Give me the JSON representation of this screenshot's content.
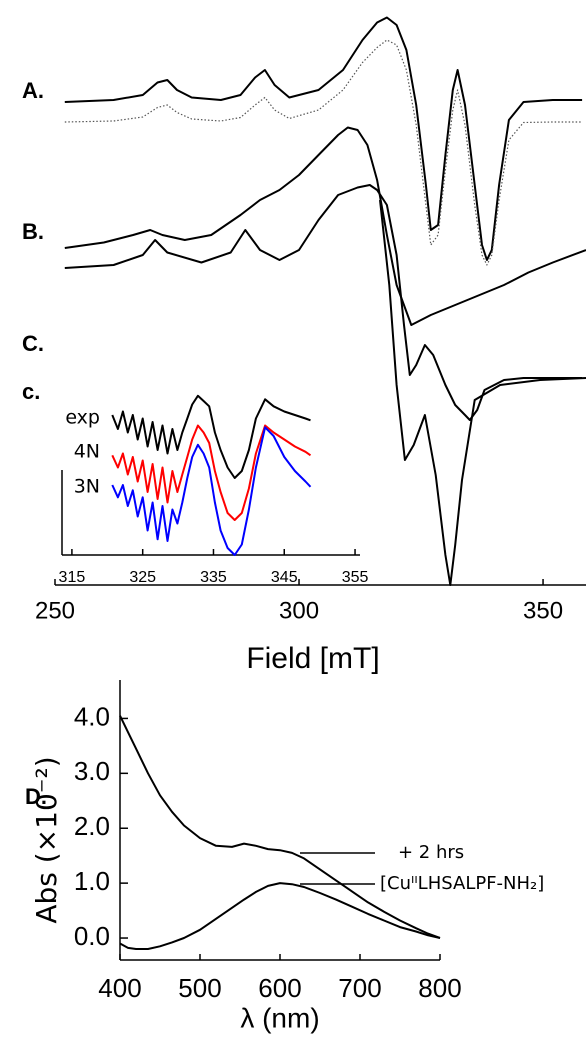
{
  "chart_data": [
    {
      "type": "line",
      "xlabel": "Field [mT]",
      "annotations": [
        "A.",
        "B.",
        "C."
      ],
      "xlim": [
        250,
        358.8
      ],
      "xticks": [
        250,
        300,
        350
      ],
      "ylim": [
        0,
        115
      ],
      "series": [
        {
          "color": "#000000",
          "line_style": "solid",
          "x": [
            252,
            262,
            268,
            271,
            273,
            275,
            278,
            284,
            288,
            291,
            293,
            295,
            298,
            304,
            309,
            313,
            316,
            318,
            320,
            322,
            324,
            326,
            327,
            328.5,
            330,
            331.5,
            332.5,
            334,
            336,
            337.5,
            338.5,
            339.5,
            341,
            343,
            346,
            352,
            358
          ],
          "values": [
            96.6,
            97,
            98,
            100.5,
            101,
            99,
            97.5,
            97,
            98,
            101.5,
            103,
            100,
            97.5,
            99,
            103,
            109,
            112.5,
            113.5,
            112,
            107,
            96,
            80,
            71,
            72,
            86,
            99,
            103,
            96,
            80,
            68,
            65,
            67,
            80,
            93,
            96.6,
            97,
            97
          ]
        },
        {
          "color": "#555555",
          "line_style": "dotted",
          "x": [
            252,
            262,
            268,
            271,
            273,
            275,
            278,
            284,
            288,
            291,
            293,
            295,
            298,
            304,
            309,
            313,
            316,
            318,
            320,
            322,
            324,
            326,
            327,
            328.5,
            330,
            331.5,
            332.5,
            334,
            336,
            337.5,
            338.5,
            339.5,
            341,
            343,
            346,
            352,
            358
          ],
          "values": [
            92.6,
            92.8,
            93.6,
            95.5,
            96,
            94.5,
            93.2,
            92.8,
            93.5,
            96,
            97.5,
            95,
            93.3,
            95,
            99,
            104.5,
            107.5,
            109,
            108,
            103,
            92,
            76,
            68,
            70,
            83,
            95,
            99,
            92,
            76,
            66,
            64,
            66,
            77,
            89,
            92.5,
            92.6,
            92.6
          ]
        },
        {
          "color": "#000000",
          "line_style": "solid",
          "x": [
            252,
            260,
            266,
            269.5,
            272,
            276.6,
            282,
            288,
            292,
            296,
            300,
            304,
            308,
            310,
            312,
            314,
            316,
            318,
            320,
            323,
            327,
            332,
            337,
            342,
            347,
            352,
            358.8
          ],
          "values": [
            67.4,
            68.5,
            70,
            71,
            70,
            69,
            70,
            74,
            77,
            79,
            82,
            86,
            90,
            91.5,
            91,
            88,
            81,
            70,
            60,
            52,
            54,
            56,
            58,
            60,
            62.5,
            64.5,
            67
          ]
        },
        {
          "color": "#000000",
          "line_style": "solid",
          "x": [
            252,
            262,
            268,
            270.5,
            273,
            280,
            286,
            289,
            292,
            296,
            300,
            304,
            308,
            312,
            314.5,
            316,
            318,
            320,
            321.5,
            322.7,
            324,
            325.8,
            327.5,
            330,
            332,
            334,
            335,
            336.5,
            338,
            342,
            346,
            352,
            358
          ],
          "values": [
            63.4,
            64,
            66,
            69,
            66.5,
            64.5,
            66.5,
            71,
            67,
            65,
            67,
            73,
            78,
            79.5,
            80,
            79,
            76,
            66,
            52,
            42,
            44,
            48,
            46,
            40,
            36,
            34,
            33,
            35,
            39,
            41,
            41.4,
            41.4,
            41.4
          ]
        },
        {
          "color": "#000000",
          "line_style": "solid",
          "x": [
            316.6,
            318.5,
            320,
            321.7,
            323.5,
            325.8,
            328,
            330,
            331,
            332,
            333.4,
            336,
            341.2,
            349.4,
            358.8
          ],
          "values": [
            77,
            60,
            40,
            25,
            28,
            34,
            22,
            6,
            0,
            8,
            21,
            37,
            40,
            41,
            41.4
          ]
        }
      ]
    },
    {
      "type": "line",
      "annotations": [
        "c."
      ],
      "xlim": [
        313.6,
        355.7
      ],
      "xticks": [
        315,
        325,
        335,
        345,
        355
      ],
      "ylim": [
        0,
        100
      ],
      "series": [
        {
          "name": "exp",
          "color": "#000000",
          "x": [
            320.7,
            321.5,
            322.2,
            322.9,
            323.6,
            324.3,
            325,
            325.7,
            326.4,
            327.1,
            327.8,
            328.5,
            329.2,
            329.9,
            330.6,
            331.3,
            332,
            332.8,
            333.6,
            334.4,
            335.2,
            336,
            337,
            338,
            339,
            340,
            341,
            342.3,
            343.5,
            345,
            346.5,
            348,
            348.7
          ],
          "values": [
            80,
            72,
            82,
            70,
            80,
            66,
            78,
            62,
            76,
            60,
            74,
            58,
            72,
            60,
            70,
            78,
            86,
            91,
            88,
            85,
            70,
            60,
            50,
            44,
            48,
            60,
            78,
            89,
            85,
            82,
            80,
            78,
            77
          ]
        },
        {
          "name": "4N",
          "color": "#ff0000",
          "x": [
            320.7,
            321.5,
            322.2,
            322.9,
            323.6,
            324.3,
            325,
            325.7,
            326.4,
            327.1,
            327.8,
            328.5,
            329.2,
            329.9,
            330.6,
            331.3,
            332,
            332.8,
            333.6,
            334.4,
            335.2,
            336,
            337,
            338,
            339,
            340,
            341,
            342.3,
            343.5,
            345,
            346.5,
            348,
            348.7
          ],
          "values": [
            57,
            50,
            58,
            46,
            56,
            42,
            54,
            36,
            52,
            32,
            50,
            30,
            48,
            36,
            46,
            56,
            66,
            74,
            70,
            64,
            48,
            36,
            24,
            20,
            24,
            38,
            58,
            74,
            70,
            66,
            62,
            59,
            57
          ]
        },
        {
          "name": "3N",
          "color": "#0000ff",
          "x": [
            320.7,
            321.5,
            322.2,
            322.9,
            323.6,
            324.3,
            325,
            325.7,
            326.4,
            327.1,
            327.8,
            328.5,
            329.2,
            329.9,
            330.6,
            331.3,
            332,
            332.8,
            333.6,
            334.4,
            335.2,
            336,
            337,
            338,
            339,
            340,
            341,
            342.3,
            343.5,
            345,
            346.5,
            348,
            348.7
          ],
          "values": [
            40,
            33,
            40,
            28,
            37,
            22,
            33,
            14,
            30,
            9,
            28,
            8,
            26,
            18,
            30,
            44,
            56,
            63,
            58,
            50,
            30,
            14,
            4,
            0,
            6,
            26,
            50,
            73,
            68,
            56,
            48,
            42,
            39
          ]
        }
      ]
    },
    {
      "type": "line",
      "annotations": [
        "D."
      ],
      "xlabel": "λ (nm)",
      "ylabel": "Abs (×10⁻²)",
      "xlim": [
        400,
        800
      ],
      "xticks": [
        400,
        500,
        600,
        700,
        800
      ],
      "ylim": [
        -0.4,
        4.7
      ],
      "yticks": [
        {
          "value": 0,
          "label": "0.0"
        },
        {
          "value": 1,
          "label": "1.0"
        },
        {
          "value": 2,
          "label": "2.0"
        },
        {
          "value": 3,
          "label": "3.0"
        },
        {
          "value": 4,
          "label": "4.0"
        }
      ],
      "series": [
        {
          "name": "+ 2 hrs",
          "color": "#000000",
          "x": [
            400,
            410,
            420,
            435,
            450,
            465,
            480,
            500,
            520,
            540,
            555,
            570,
            585,
            600,
            615,
            630,
            650,
            670,
            690,
            710,
            730,
            750,
            770,
            785,
            800
          ],
          "values": [
            4.05,
            3.75,
            3.45,
            3.0,
            2.6,
            2.3,
            2.05,
            1.82,
            1.68,
            1.66,
            1.72,
            1.68,
            1.62,
            1.6,
            1.55,
            1.45,
            1.25,
            1.05,
            0.85,
            0.65,
            0.48,
            0.32,
            0.18,
            0.08,
            0.0
          ]
        },
        {
          "name": "[CuᴵᴵLHSALPF-NH₂]",
          "color": "#000000",
          "x": [
            400,
            410,
            420,
            435,
            450,
            465,
            480,
            500,
            520,
            540,
            555,
            570,
            585,
            600,
            615,
            630,
            650,
            670,
            690,
            710,
            730,
            750,
            770,
            785,
            800
          ],
          "values": [
            -0.1,
            -0.18,
            -0.2,
            -0.2,
            -0.15,
            -0.08,
            0.0,
            0.15,
            0.35,
            0.55,
            0.7,
            0.84,
            0.95,
            1.0,
            0.98,
            0.93,
            0.82,
            0.7,
            0.57,
            0.44,
            0.32,
            0.2,
            0.12,
            0.05,
            0.0
          ]
        }
      ]
    }
  ]
}
